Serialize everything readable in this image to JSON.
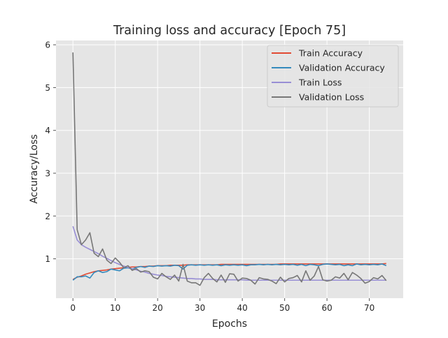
{
  "chart_data": {
    "type": "line",
    "title": "Training loss and accuracy [Epoch 75]",
    "xlabel": "Epochs",
    "ylabel": "Accuracy/Loss",
    "xlim": [
      -4,
      78
    ],
    "ylim": [
      0.08,
      6.1
    ],
    "xticks": [
      0,
      10,
      20,
      30,
      40,
      50,
      60,
      70
    ],
    "yticks": [
      1,
      2,
      3,
      4,
      5,
      6
    ],
    "grid": true,
    "legend_position": "top-right",
    "x": [
      0,
      1,
      2,
      3,
      4,
      5,
      6,
      7,
      8,
      9,
      10,
      11,
      12,
      13,
      14,
      15,
      16,
      17,
      18,
      19,
      20,
      21,
      22,
      23,
      24,
      25,
      26,
      27,
      28,
      29,
      30,
      31,
      32,
      33,
      34,
      35,
      36,
      37,
      38,
      39,
      40,
      41,
      42,
      43,
      44,
      45,
      46,
      47,
      48,
      49,
      50,
      51,
      52,
      53,
      54,
      55,
      56,
      57,
      58,
      59,
      60,
      61,
      62,
      63,
      64,
      65,
      66,
      67,
      68,
      69,
      70,
      71,
      72,
      73,
      74
    ],
    "series": [
      {
        "name": "Train Accuracy",
        "color": "#E24A33",
        "values": [
          0.52,
          0.57,
          0.6,
          0.64,
          0.67,
          0.7,
          0.72,
          0.73,
          0.74,
          0.76,
          0.77,
          0.78,
          0.79,
          0.8,
          0.81,
          0.81,
          0.82,
          0.82,
          0.83,
          0.83,
          0.84,
          0.84,
          0.84,
          0.85,
          0.85,
          0.85,
          0.85,
          0.86,
          0.86,
          0.86,
          0.86,
          0.86,
          0.86,
          0.86,
          0.86,
          0.87,
          0.87,
          0.87,
          0.87,
          0.87,
          0.87,
          0.87,
          0.87,
          0.87,
          0.87,
          0.87,
          0.87,
          0.87,
          0.87,
          0.88,
          0.88,
          0.88,
          0.88,
          0.88,
          0.88,
          0.88,
          0.88,
          0.88,
          0.88,
          0.88,
          0.88,
          0.88,
          0.88,
          0.88,
          0.88,
          0.88,
          0.88,
          0.88,
          0.88,
          0.88,
          0.88,
          0.88,
          0.88,
          0.88,
          0.89
        ]
      },
      {
        "name": "Validation Accuracy",
        "color": "#348ABD",
        "values": [
          0.5,
          0.58,
          0.58,
          0.6,
          0.55,
          0.68,
          0.72,
          0.68,
          0.7,
          0.76,
          0.74,
          0.72,
          0.78,
          0.79,
          0.76,
          0.8,
          0.82,
          0.8,
          0.83,
          0.82,
          0.84,
          0.83,
          0.84,
          0.83,
          0.85,
          0.84,
          0.76,
          0.85,
          0.86,
          0.85,
          0.86,
          0.85,
          0.86,
          0.85,
          0.86,
          0.84,
          0.86,
          0.85,
          0.86,
          0.85,
          0.86,
          0.84,
          0.86,
          0.86,
          0.87,
          0.86,
          0.87,
          0.86,
          0.87,
          0.86,
          0.87,
          0.86,
          0.87,
          0.85,
          0.87,
          0.84,
          0.87,
          0.86,
          0.84,
          0.87,
          0.88,
          0.87,
          0.86,
          0.87,
          0.84,
          0.86,
          0.84,
          0.88,
          0.86,
          0.87,
          0.86,
          0.87,
          0.86,
          0.88,
          0.84
        ]
      },
      {
        "name": "Train Loss",
        "color": "#988ED5",
        "values": [
          1.76,
          1.44,
          1.33,
          1.27,
          1.22,
          1.17,
          1.12,
          1.06,
          1.01,
          0.96,
          0.91,
          0.87,
          0.83,
          0.8,
          0.77,
          0.74,
          0.71,
          0.69,
          0.66,
          0.64,
          0.62,
          0.61,
          0.59,
          0.58,
          0.57,
          0.56,
          0.55,
          0.54,
          0.54,
          0.53,
          0.53,
          0.52,
          0.52,
          0.52,
          0.51,
          0.51,
          0.51,
          0.51,
          0.51,
          0.51,
          0.51,
          0.5,
          0.5,
          0.5,
          0.5,
          0.5,
          0.5,
          0.5,
          0.5,
          0.5,
          0.5,
          0.5,
          0.5,
          0.5,
          0.5,
          0.5,
          0.5,
          0.5,
          0.5,
          0.5,
          0.5,
          0.5,
          0.5,
          0.5,
          0.5,
          0.5,
          0.5,
          0.5,
          0.5,
          0.5,
          0.5,
          0.5,
          0.5,
          0.5,
          0.5
        ]
      },
      {
        "name": "Validation Loss",
        "color": "#777777",
        "values": [
          5.82,
          1.68,
          1.33,
          1.44,
          1.61,
          1.13,
          1.05,
          1.23,
          0.97,
          0.89,
          1.02,
          0.92,
          0.79,
          0.84,
          0.73,
          0.77,
          0.69,
          0.72,
          0.7,
          0.57,
          0.53,
          0.66,
          0.58,
          0.52,
          0.62,
          0.48,
          0.87,
          0.48,
          0.44,
          0.44,
          0.38,
          0.56,
          0.66,
          0.54,
          0.46,
          0.62,
          0.45,
          0.65,
          0.64,
          0.48,
          0.55,
          0.54,
          0.5,
          0.41,
          0.56,
          0.53,
          0.52,
          0.48,
          0.42,
          0.57,
          0.46,
          0.54,
          0.56,
          0.61,
          0.46,
          0.72,
          0.5,
          0.6,
          0.82,
          0.51,
          0.48,
          0.5,
          0.58,
          0.55,
          0.66,
          0.51,
          0.68,
          0.62,
          0.54,
          0.43,
          0.47,
          0.56,
          0.53,
          0.61,
          0.49
        ]
      }
    ]
  }
}
